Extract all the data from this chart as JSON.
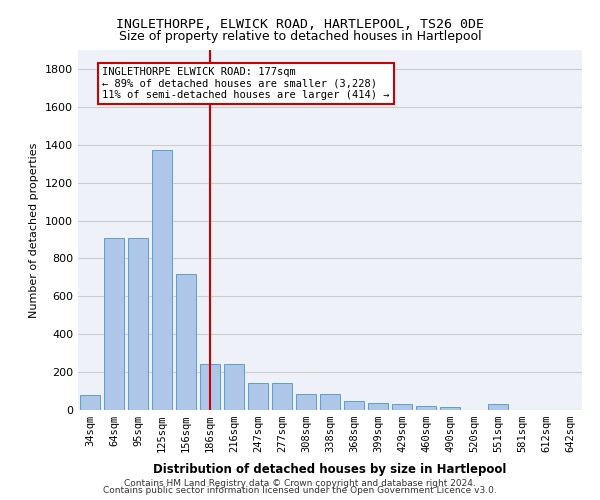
{
  "title1": "INGLETHORPE, ELWICK ROAD, HARTLEPOOL, TS26 0DE",
  "title2": "Size of property relative to detached houses in Hartlepool",
  "xlabel": "Distribution of detached houses by size in Hartlepool",
  "ylabel": "Number of detached properties",
  "categories": [
    "34sqm",
    "64sqm",
    "95sqm",
    "125sqm",
    "156sqm",
    "186sqm",
    "216sqm",
    "247sqm",
    "277sqm",
    "308sqm",
    "338sqm",
    "368sqm",
    "399sqm",
    "429sqm",
    "460sqm",
    "490sqm",
    "520sqm",
    "551sqm",
    "581sqm",
    "612sqm",
    "642sqm"
  ],
  "values": [
    80,
    910,
    910,
    1370,
    720,
    245,
    245,
    140,
    140,
    85,
    85,
    50,
    35,
    30,
    20,
    15,
    0,
    30,
    0,
    0,
    0
  ],
  "bar_color": "#aec6e8",
  "bar_edgecolor": "#5a9fd4",
  "vline_x_index": 5,
  "vline_color": "#cc0000",
  "annotation_text": "INGLETHORPE ELWICK ROAD: 177sqm\n← 89% of detached houses are smaller (3,228)\n11% of semi-detached houses are larger (414) →",
  "annotation_box_color": "#cc0000",
  "ylim": [
    0,
    1900
  ],
  "yticks": [
    0,
    200,
    400,
    600,
    800,
    1000,
    1200,
    1400,
    1600,
    1800
  ],
  "grid_color": "#cccccc",
  "bg_color": "#eef2f8",
  "footer1": "Contains HM Land Registry data © Crown copyright and database right 2024.",
  "footer2": "Contains public sector information licensed under the Open Government Licence v3.0."
}
